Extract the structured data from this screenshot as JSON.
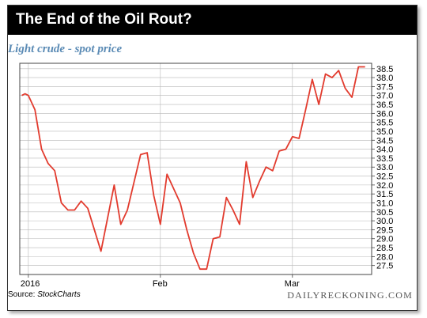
{
  "title": "The End of the Oil Rout?",
  "subtitle": "Light crude - spot price",
  "source_label": "Source:",
  "source_name": "StockCharts",
  "brand": "DAILYRECKONING.COM",
  "colors": {
    "line": "#e23b2e",
    "grid": "#b8b8b8",
    "title_bg": "#000000",
    "subtitle": "#5b8bb5"
  },
  "chart_data": {
    "type": "line",
    "title": "The End of the Oil Rout?",
    "subtitle": "Light crude - spot price",
    "ylim": [
      27,
      38.8
    ],
    "y_ticks": [
      27.5,
      28.0,
      28.5,
      29.0,
      29.5,
      30.0,
      30.5,
      31.0,
      31.5,
      32.0,
      32.5,
      33.0,
      33.5,
      34.0,
      34.5,
      35.0,
      35.5,
      36.0,
      36.5,
      37.0,
      37.5,
      38.0,
      38.5
    ],
    "y_tick_labels": [
      "27.5",
      "28.0",
      "28.5",
      "29.0",
      "29.5",
      "30.0",
      "30.5",
      "31.0",
      "31.5",
      "32.0",
      "32.5",
      "33.0",
      "33.5",
      "34.0",
      "34.5",
      "35.0",
      "35.5",
      "36.0",
      "36.5",
      "37.0",
      "37.5",
      "38.0",
      "38.5"
    ],
    "x_ticks": [
      {
        "label": "2016",
        "x": 0
      },
      {
        "label": "Feb",
        "x": 20
      },
      {
        "label": "Mar",
        "x": 40
      }
    ],
    "xlim": [
      -1.3,
      52
    ],
    "grid": true,
    "series": [
      {
        "x": [
          -1,
          -0.5,
          0,
          1,
          2,
          3,
          4,
          5,
          6,
          7,
          8,
          9,
          11,
          13,
          14,
          15,
          17,
          18,
          19,
          20,
          21,
          23,
          24,
          25,
          26,
          27,
          28,
          29,
          30,
          31,
          32,
          33,
          34,
          35,
          36,
          37,
          38,
          39,
          40,
          41,
          42,
          43,
          44,
          45,
          46,
          47,
          48,
          49,
          50,
          51
        ],
        "y": [
          37.0,
          37.1,
          37.0,
          36.2,
          34.0,
          33.2,
          32.8,
          31.0,
          30.6,
          30.6,
          31.1,
          30.7,
          28.3,
          32.0,
          29.8,
          30.6,
          33.7,
          33.8,
          31.4,
          29.8,
          32.6,
          31.0,
          29.5,
          28.2,
          27.3,
          27.3,
          29.0,
          29.1,
          31.3,
          30.6,
          29.8,
          33.3,
          31.3,
          32.2,
          33.0,
          32.8,
          33.9,
          34.0,
          34.7,
          34.6,
          36.2,
          37.9,
          36.5,
          38.2,
          38.0,
          38.4,
          37.4,
          36.9,
          38.6,
          38.6
        ]
      }
    ]
  }
}
